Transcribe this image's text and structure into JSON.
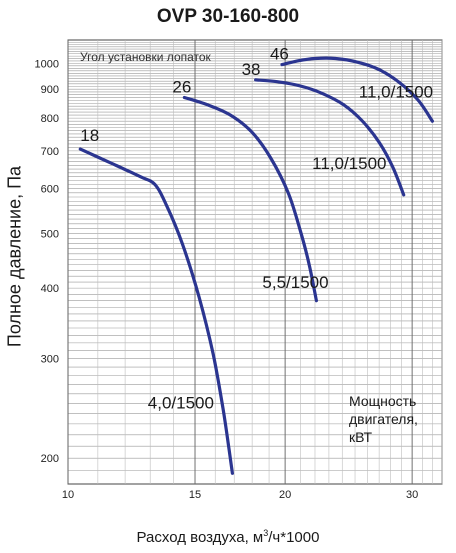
{
  "chart_data": {
    "type": "line",
    "title": "OVP 30-160-800",
    "ylabel": "Полное давление, Па",
    "xlabel_prefix": "Расход воздуха, м",
    "xlabel_sup": "3",
    "xlabel_suffix": "/ч*1000",
    "x_scale": "log",
    "y_scale": "log",
    "xlim": [
      10,
      33
    ],
    "ylim": [
      180,
      1100
    ],
    "x_ticks": [
      10,
      15,
      20,
      30
    ],
    "y_ticks": [
      200,
      300,
      400,
      500,
      600,
      700,
      800,
      900,
      1000
    ],
    "grid": true,
    "series_color": "#2b3590",
    "annotation_blade_angle": "Угол установки лопаток",
    "annotation_power": [
      "Мощность",
      "двигателя,",
      "кВТ"
    ],
    "series": [
      {
        "name": "18",
        "power_label": "4,0/1500",
        "x": [
          10.4,
          11.5,
          12.6,
          13.2,
          13.7,
          14.4,
          15.2,
          15.9,
          16.4,
          16.7,
          16.9
        ],
        "y": [
          705,
          665,
          630,
          610,
          560,
          480,
          385,
          305,
          245,
          210,
          188
        ]
      },
      {
        "name": "26",
        "power_label": "5,5/1500",
        "x": [
          14.5,
          15.6,
          16.8,
          18.0,
          19.1,
          20.2,
          21.0,
          21.6,
          22.1
        ],
        "y": [
          870,
          845,
          810,
          755,
          680,
          590,
          505,
          440,
          380
        ]
      },
      {
        "name": "38",
        "power_label": "11,0/1500",
        "x": [
          18.2,
          19.5,
          21.0,
          22.5,
          24.1,
          25.6,
          27.0,
          28.2,
          29.2
        ],
        "y": [
          935,
          928,
          912,
          885,
          845,
          790,
          725,
          655,
          585
        ]
      },
      {
        "name": "46",
        "power_label": "11,0/1500",
        "x": [
          19.8,
          20.8,
          22.0,
          23.5,
          25.2,
          27.0,
          28.8,
          30.6,
          32.0
        ],
        "y": [
          995,
          1010,
          1020,
          1020,
          1005,
          975,
          925,
          860,
          790
        ]
      }
    ]
  }
}
